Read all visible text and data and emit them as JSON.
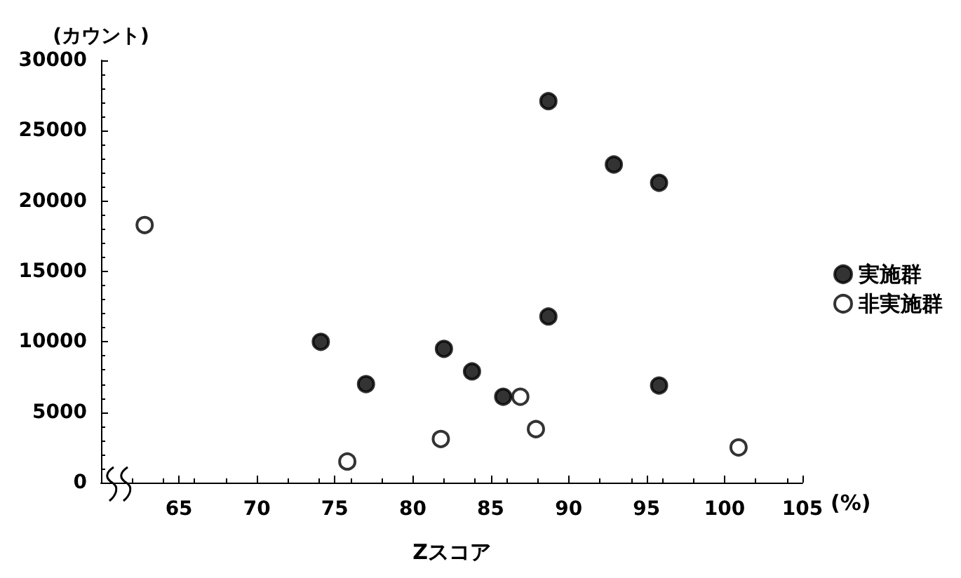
{
  "chart_data": {
    "type": "scatter",
    "xlabel": "Zスコア",
    "ylabel": "(カウント)",
    "annotations": [
      "(%)"
    ],
    "xlim": [
      60,
      105
    ],
    "xticks": [
      65,
      70,
      75,
      80,
      85,
      90,
      95,
      100,
      105
    ],
    "ylim": [
      0,
      30000
    ],
    "yticks": [
      0,
      5000,
      10000,
      15000,
      20000,
      25000,
      30000
    ],
    "grid": false,
    "legend": "right",
    "series": [
      {
        "name": "実施群",
        "color": "#000000",
        "marker": "circle",
        "x": [
          74.1,
          77.0,
          82.0,
          83.8,
          85.8,
          88.7,
          88.7,
          92.9,
          95.8,
          95.8
        ],
        "values": [
          10000,
          7000,
          9500,
          7900,
          6100,
          27100,
          11800,
          22600,
          21300,
          6900
        ]
      },
      {
        "name": "非実施群",
        "color": "#000000",
        "marker": "open circle",
        "x": [
          62.8,
          75.8,
          81.8,
          86.9,
          87.9,
          100.9
        ],
        "values": [
          18300,
          1500,
          3100,
          6100,
          3800,
          2500
        ]
      }
    ]
  }
}
